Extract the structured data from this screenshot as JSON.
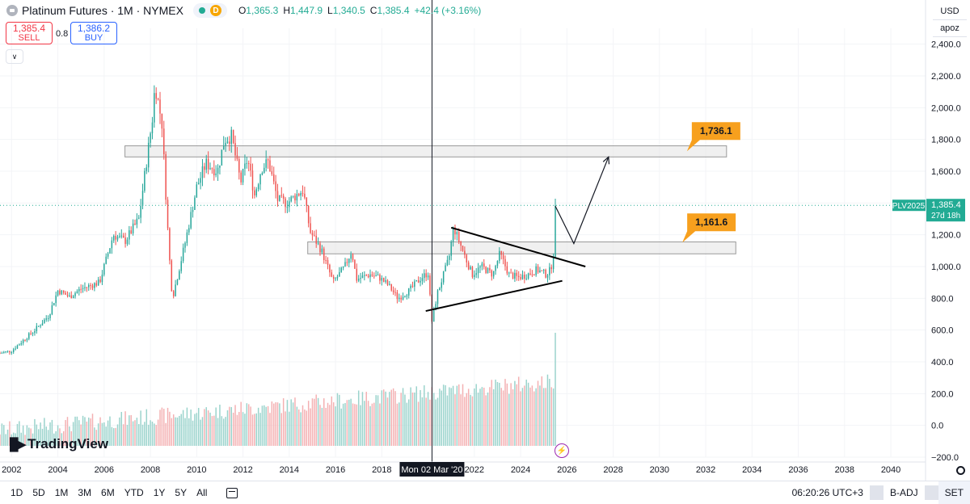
{
  "header": {
    "title": "Platinum Futures · 1M · NYMEX",
    "d_badge": "D",
    "ohlc": {
      "o_label": "O",
      "o": "1,365.3",
      "h_label": "H",
      "h": "1,447.9",
      "l_label": "L",
      "l": "1,340.5",
      "c_label": "C",
      "c": "1,385.4",
      "change": "+42.4 (+3.16%)"
    }
  },
  "trade": {
    "sell_price": "1,385.4",
    "sell_label": "SELL",
    "spread": "0.8",
    "buy_price": "1,386.2",
    "buy_label": "BUY"
  },
  "right_top": {
    "currency": "USD",
    "scale_mode": "apoz"
  },
  "logo": {
    "text": "TradingView"
  },
  "bottom_bar": {
    "timeframes": [
      "1D",
      "5D",
      "1M",
      "3M",
      "6M",
      "YTD",
      "1Y",
      "5Y",
      "All"
    ],
    "clock": "06:20:26 UTC+3",
    "adjust": "B-ADJ",
    "session": "SET"
  },
  "colors": {
    "up": "#26a69a",
    "down": "#ef5350",
    "vol_up": "#9ad3cc",
    "vol_down": "#f4b0b2",
    "callout": "#f7a01e",
    "price_tag": "#22ab94"
  },
  "chart_data": {
    "type": "candlestick",
    "symbol": "PLV2025",
    "interval": "1M",
    "ylim": [
      -200,
      2500
    ],
    "y_ticks": [
      2400,
      2200,
      2000,
      1800,
      1600,
      1400,
      1200,
      1000,
      800,
      600,
      400,
      200,
      0,
      -200
    ],
    "y_tick_labels": [
      "2,400.0",
      "2,200.0",
      "2,000.0",
      "1,800.0",
      "1,600.0",
      "1,400.0",
      "1,200.0",
      "1,000.0",
      "800.0",
      "600.0",
      "400.0",
      "200.0",
      "0.0",
      "−200.0"
    ],
    "xlim": [
      2001.5,
      2041.5
    ],
    "x_ticks": [
      2002,
      2004,
      2006,
      2008,
      2010,
      2012,
      2014,
      2016,
      2018,
      2022,
      2024,
      2026,
      2028,
      2030,
      2032,
      2034,
      2036,
      2038,
      2040
    ],
    "crosshair": {
      "x": 2020.17,
      "label": "Mon 02 Mar '20"
    },
    "last_price": {
      "value": 1385.4,
      "label": "1,385.4",
      "countdown": "27d 18h"
    },
    "close_keypoints": [
      [
        2001.5,
        455
      ],
      [
        2002.0,
        470
      ],
      [
        2003.0,
        600
      ],
      [
        2003.6,
        690
      ],
      [
        2004.0,
        850
      ],
      [
        2004.5,
        810
      ],
      [
        2005.0,
        860
      ],
      [
        2005.8,
        900
      ],
      [
        2006.4,
        1200
      ],
      [
        2006.9,
        1160
      ],
      [
        2007.5,
        1300
      ],
      [
        2008.1,
        1950
      ],
      [
        2008.2,
        2150
      ],
      [
        2008.5,
        1900
      ],
      [
        2008.8,
        1100
      ],
      [
        2008.95,
        800
      ],
      [
        2009.5,
        1150
      ],
      [
        2010.0,
        1500
      ],
      [
        2010.4,
        1650
      ],
      [
        2010.9,
        1600
      ],
      [
        2011.2,
        1800
      ],
      [
        2011.5,
        1820
      ],
      [
        2011.9,
        1530
      ],
      [
        2012.2,
        1680
      ],
      [
        2012.5,
        1450
      ],
      [
        2012.8,
        1620
      ],
      [
        2013.1,
        1660
      ],
      [
        2013.5,
        1420
      ],
      [
        2013.9,
        1400
      ],
      [
        2014.3,
        1450
      ],
      [
        2014.6,
        1480
      ],
      [
        2014.9,
        1220
      ],
      [
        2015.4,
        1100
      ],
      [
        2015.9,
        900
      ],
      [
        2016.4,
        1000
      ],
      [
        2016.7,
        1100
      ],
      [
        2016.9,
        920
      ],
      [
        2017.5,
        950
      ],
      [
        2017.9,
        930
      ],
      [
        2018.3,
        880
      ],
      [
        2018.7,
        800
      ],
      [
        2019.2,
        850
      ],
      [
        2019.7,
        930
      ],
      [
        2020.0,
        960
      ],
      [
        2020.17,
        650
      ],
      [
        2020.4,
        830
      ],
      [
        2020.9,
        1050
      ],
      [
        2021.1,
        1250
      ],
      [
        2021.5,
        1100
      ],
      [
        2021.9,
        950
      ],
      [
        2022.3,
        1000
      ],
      [
        2022.8,
        950
      ],
      [
        2023.1,
        1080
      ],
      [
        2023.5,
        950
      ],
      [
        2023.9,
        930
      ],
      [
        2024.3,
        950
      ],
      [
        2024.7,
        980
      ],
      [
        2025.1,
        950
      ],
      [
        2025.3,
        980
      ],
      [
        2025.42,
        1080
      ],
      [
        2025.5,
        1385.4
      ]
    ],
    "zones": [
      {
        "name": "resistance-zone",
        "x": [
          2006.9,
          2032.9
        ],
        "y": [
          1690,
          1760
        ]
      },
      {
        "name": "support-zone",
        "x": [
          2014.8,
          2033.3
        ],
        "y": [
          1080,
          1155
        ]
      }
    ],
    "trendlines": [
      {
        "name": "upper-trendline",
        "points": [
          [
            2021.0,
            1245
          ],
          [
            2026.8,
            1000
          ]
        ]
      },
      {
        "name": "lower-trendline",
        "points": [
          [
            2019.9,
            720
          ],
          [
            2025.8,
            910
          ]
        ]
      }
    ],
    "projection": {
      "points": [
        [
          2025.5,
          1380
        ],
        [
          2026.3,
          1145
        ],
        [
          2027.8,
          1690
        ]
      ]
    },
    "callouts": [
      {
        "label": "1,736.1",
        "anchor": [
          2030.7,
          1736.1
        ]
      },
      {
        "label": "1,161.6",
        "anchor": [
          2030.5,
          1161.6
        ]
      }
    ]
  }
}
